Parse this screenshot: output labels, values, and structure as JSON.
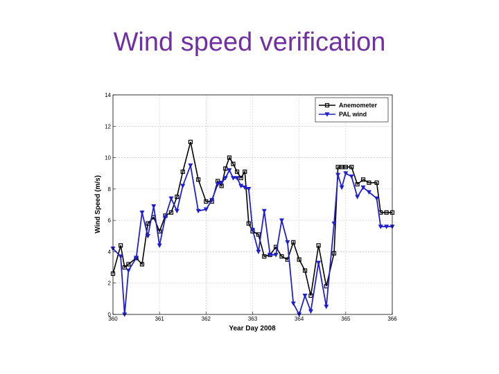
{
  "slide": {
    "title": "Wind speed verification"
  },
  "chart_data": {
    "type": "line",
    "title": "",
    "xlabel": "Year Day 2008",
    "ylabel": "Wind Speed (m/s)",
    "xlim": [
      360,
      366
    ],
    "ylim": [
      0,
      14
    ],
    "xticks": [
      360,
      361,
      362,
      363,
      364,
      365,
      366
    ],
    "yticks": [
      0,
      2,
      4,
      6,
      8,
      10,
      12,
      14
    ],
    "grid": true,
    "legend_position": "top-right",
    "series": [
      {
        "name": "Anemometer",
        "color": "#000000",
        "marker": "square",
        "x": [
          360.0,
          360.166,
          360.25,
          360.333,
          360.5,
          360.625,
          360.75,
          360.875,
          361.0,
          361.125,
          361.25,
          361.375,
          361.5,
          361.666,
          361.833,
          362.0,
          362.125,
          362.25,
          362.333,
          362.416,
          362.5,
          362.583,
          362.666,
          362.75,
          362.833,
          362.916,
          363.0,
          363.125,
          363.25,
          363.375,
          363.5,
          363.625,
          363.75,
          363.875,
          364.0,
          364.125,
          364.25,
          364.416,
          364.583,
          364.75,
          364.833,
          364.916,
          365.0,
          365.125,
          365.25,
          365.375,
          365.5,
          365.666,
          365.75,
          365.875,
          366.0
        ],
        "y": [
          2.6,
          4.4,
          3.0,
          3.2,
          3.6,
          3.2,
          5.8,
          6.2,
          5.3,
          6.3,
          6.5,
          7.5,
          9.1,
          11.0,
          8.6,
          7.2,
          7.2,
          8.5,
          8.2,
          9.3,
          10.0,
          9.6,
          9.1,
          8.7,
          9.1,
          5.8,
          5.3,
          5.1,
          3.7,
          3.8,
          4.3,
          3.7,
          3.5,
          4.6,
          3.5,
          2.8,
          1.2,
          4.4,
          1.8,
          3.9,
          9.4,
          9.4,
          9.4,
          9.4,
          8.3,
          8.6,
          8.4,
          8.4,
          6.5,
          6.5,
          6.5
        ]
      },
      {
        "name": "PAL wind",
        "color": "#1f1fcc",
        "marker": "triangle-down",
        "x": [
          360.0,
          360.166,
          360.25,
          360.333,
          360.5,
          360.625,
          360.75,
          360.875,
          361.0,
          361.125,
          361.25,
          361.375,
          361.5,
          361.666,
          361.833,
          362.0,
          362.125,
          362.25,
          362.333,
          362.416,
          362.5,
          362.583,
          362.666,
          362.75,
          362.833,
          362.916,
          363.0,
          363.125,
          363.25,
          363.375,
          363.5,
          363.625,
          363.75,
          363.875,
          364.0,
          364.125,
          364.25,
          364.416,
          364.583,
          364.75,
          364.833,
          364.916,
          365.0,
          365.125,
          365.25,
          365.375,
          365.5,
          365.666,
          365.75,
          365.875,
          366.0
        ],
        "y": [
          4.2,
          3.7,
          0.0,
          2.8,
          3.6,
          6.5,
          5.0,
          6.9,
          4.4,
          6.2,
          7.4,
          6.6,
          8.2,
          9.5,
          6.6,
          6.7,
          7.3,
          8.3,
          8.4,
          8.7,
          9.2,
          8.7,
          8.7,
          8.2,
          8.1,
          8.0,
          5.4,
          4.0,
          6.6,
          3.8,
          3.8,
          6.0,
          4.6,
          0.7,
          0.0,
          1.2,
          0.2,
          3.3,
          0.5,
          5.8,
          8.9,
          8.1,
          9.0,
          8.8,
          7.5,
          8.1,
          7.8,
          7.4,
          5.6,
          5.6,
          5.6
        ]
      }
    ]
  }
}
